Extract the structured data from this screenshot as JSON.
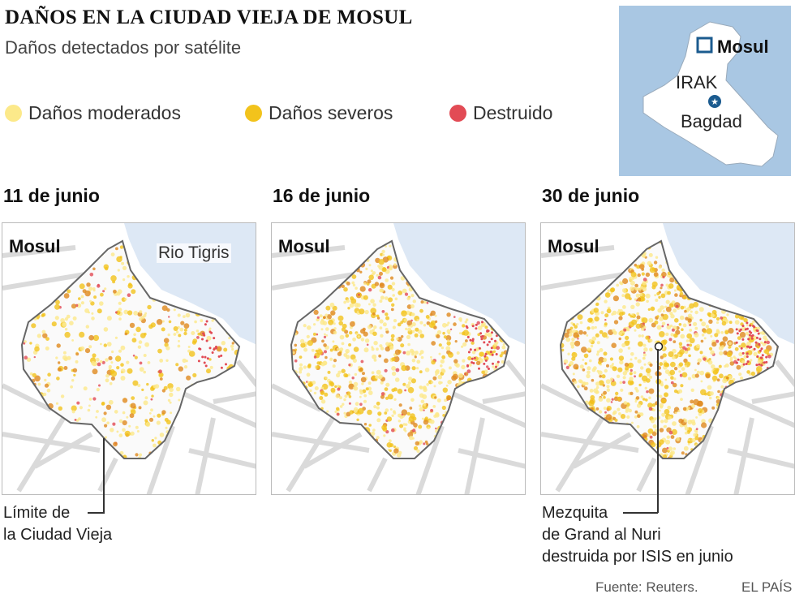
{
  "header": {
    "title": "DAÑOS EN LA CIUDAD VIEJA DE MOSUL",
    "subtitle": "Daños detectados por satélite"
  },
  "legend": [
    {
      "label": "Daños moderados",
      "color": "#fce98a"
    },
    {
      "label": "Daños severos",
      "color": "#f2c31c"
    },
    {
      "label": "Destruido",
      "color": "#e24b55"
    }
  ],
  "inset": {
    "city_label": "Mosul",
    "country_label": "IRAK",
    "capital_label": "Bagdad",
    "water_color": "#a9c7e3",
    "land_color": "#ffffff",
    "marker_color": "#1b5b8f"
  },
  "panels": [
    {
      "date": "11 de junio",
      "city_label": "Mosul",
      "river_label": "Rio Tigris",
      "density": 0.45
    },
    {
      "date": "16 de junio",
      "city_label": "Mosul",
      "density": 0.8
    },
    {
      "date": "30 de junio",
      "city_label": "Mosul",
      "density": 1.0
    }
  ],
  "annotations": {
    "boundary_line1": "Límite de",
    "boundary_line2": "la Ciudad Vieja",
    "mosque_line1": "Mezquita",
    "mosque_line2": "de Grand al Nuri",
    "mosque_line3": "destruida por ISIS en junio"
  },
  "footer": {
    "source": "Fuente: Reuters.",
    "credit": "EL PAÍS"
  }
}
